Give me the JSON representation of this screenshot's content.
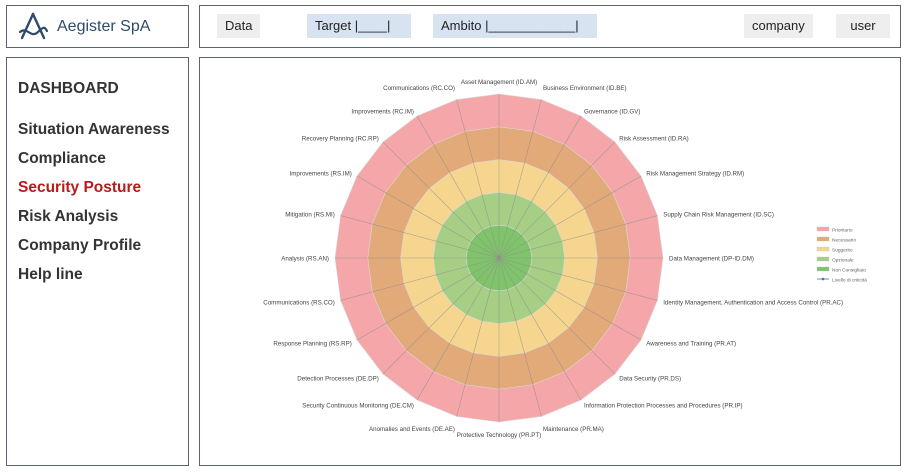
{
  "brand": {
    "name": "Aegister SpA"
  },
  "topbar": {
    "data_label": "Data",
    "target_label": "Target  |____|",
    "ambito_label": "Ambito |____________|",
    "company_label": "company",
    "user_label": "user"
  },
  "sidebar": {
    "title": "DASHBOARD",
    "items": [
      {
        "label": "Situation Awareness",
        "active": false
      },
      {
        "label": "Compliance",
        "active": false
      },
      {
        "label": "Security Posture",
        "active": true
      },
      {
        "label": "Risk Analysis",
        "active": false
      },
      {
        "label": "Company Profile",
        "active": false
      },
      {
        "label": "Help line",
        "active": false
      }
    ]
  },
  "colors": {
    "active_menu": "#b71c1c",
    "brand_text": "#2d4a6b"
  },
  "chart_data": {
    "type": "radar",
    "axes": [
      "Asset Management (ID.AM)",
      "Business Environment (ID.BE)",
      "Governance (ID.GV)",
      "Risk Assessment (ID.RA)",
      "Risk Management Strategy (ID.RM)",
      "Supply Chain Risk Management (ID.SC)",
      "Data Management (DP-ID.DM)",
      "Identity Management, Authentication and Access Control (PR.AC)",
      "Awareness and Training (PR.AT)",
      "Data Security (PR.DS)",
      "Information Protection Processes and Procedures (PR.IP)",
      "Maintenance (PR.MA)",
      "Protective Technology (PR.PT)",
      "Anomalies and Events (DE.AE)",
      "Security Continuous Monitoring (DE.CM)",
      "Detection Processes (DE.DP)",
      "Response Planning (RS.RP)",
      "Communications (RS.CO)",
      "Analysis (RS.AN)",
      "Mitigation (RS.MI)",
      "Improvements (RS.IM)",
      "Recovery Planning (RC.RP)",
      "Improvements (RC.IM)",
      "Communications (RC.CO)"
    ],
    "bands": [
      {
        "name": "Prioritario",
        "level": 5,
        "color": "#f4a6a8"
      },
      {
        "name": "Necessario",
        "level": 4,
        "color": "#e2a979"
      },
      {
        "name": "Suggerito",
        "level": 3,
        "color": "#f6d68f"
      },
      {
        "name": "Opzionale",
        "level": 2,
        "color": "#a6cf85"
      },
      {
        "name": "Non Consigliato",
        "level": 1,
        "color": "#7fc46a"
      }
    ],
    "series": [
      {
        "name": "Livello di criticità",
        "color": "#4a6fa5"
      }
    ],
    "max": 5,
    "legend_position": "right"
  }
}
